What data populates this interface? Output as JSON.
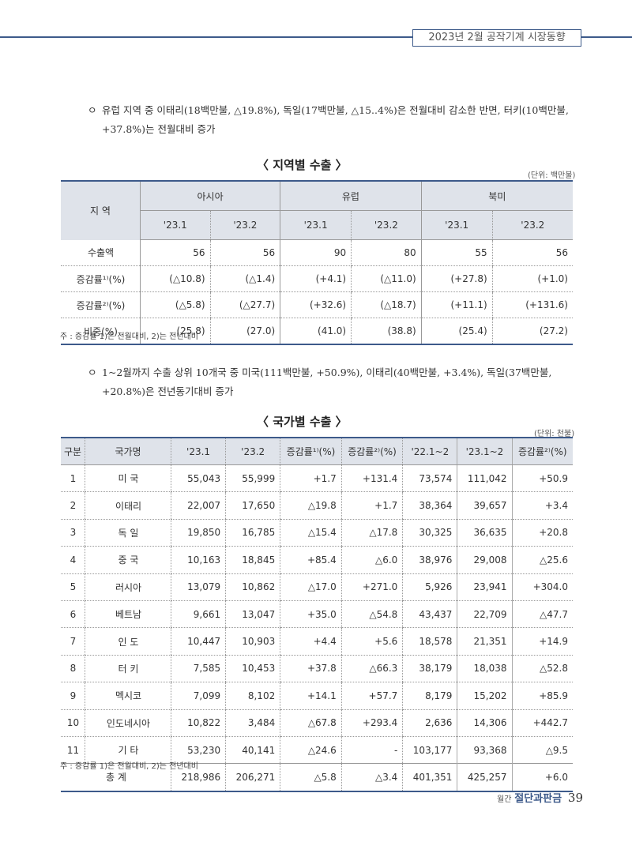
{
  "header": {
    "title": "2023년 2월 공작기계 시장동향"
  },
  "paragraph1": {
    "bullet": "ㅇ",
    "text": "유럽 지역 중 이태리(18백만불, △19.8%), 독일(17백만불, △15..4%)은 전월대비 감소한 반면, 터키(10백만불, +37.8%)는 전월대비 증가"
  },
  "region_table": {
    "title": "〈 지역별 수출 〉",
    "unit": "(단위: 백만불)",
    "region_header": "지 역",
    "groups": [
      "아시아",
      "유럽",
      "북미"
    ],
    "periods": [
      "'23.1",
      "'23.2",
      "'23.1",
      "'23.2",
      "'23.1",
      "'23.2"
    ],
    "rows": [
      {
        "label": "수출액",
        "values": [
          "56",
          "56",
          "90",
          "80",
          "55",
          "56"
        ]
      },
      {
        "label": "증감률¹⁾(%)",
        "values": [
          "(△10.8)",
          "(△1.4)",
          "(+4.1)",
          "(△11.0)",
          "(+27.8)",
          "(+1.0)"
        ]
      },
      {
        "label": "증감률²⁾(%)",
        "values": [
          "(△5.8)",
          "(△27.7)",
          "(+32.6)",
          "(△18.7)",
          "(+11.1)",
          "(+131.6)"
        ]
      },
      {
        "label": "비중(%)",
        "values": [
          "(25.8)",
          "(27.0)",
          "(41.0)",
          "(38.8)",
          "(25.4)",
          "(27.2)"
        ]
      }
    ],
    "note": "주 : 증감률 1)은 전월대비, 2)는 전년대비"
  },
  "paragraph2": {
    "bullet": "ㅇ",
    "text": "1~2월까지 수출 상위 10개국 중 미국(111백만불, +50.9%), 이태리(40백만불, +3.4%), 독일(37백만불, +20.8%)은 전년동기대비 증가"
  },
  "country_table": {
    "title": "〈 국가별 수출 〉",
    "unit": "(단위: 천불)",
    "headers": [
      "구분",
      "국가명",
      "'23.1",
      "'23.2",
      "증감률¹⁾(%)",
      "증감률²⁾(%)",
      "'22.1~2",
      "'23.1~2",
      "증감률²⁾(%)"
    ],
    "rows": [
      [
        "1",
        "미 국",
        "55,043",
        "55,999",
        "+1.7",
        "+131.4",
        "73,574",
        "111,042",
        "+50.9"
      ],
      [
        "2",
        "이태리",
        "22,007",
        "17,650",
        "△19.8",
        "+1.7",
        "38,364",
        "39,657",
        "+3.4"
      ],
      [
        "3",
        "독 일",
        "19,850",
        "16,785",
        "△15.4",
        "△17.8",
        "30,325",
        "36,635",
        "+20.8"
      ],
      [
        "4",
        "중 국",
        "10,163",
        "18,845",
        "+85.4",
        "△6.0",
        "38,976",
        "29,008",
        "△25.6"
      ],
      [
        "5",
        "러시아",
        "13,079",
        "10,862",
        "△17.0",
        "+271.0",
        "5,926",
        "23,941",
        "+304.0"
      ],
      [
        "6",
        "베트남",
        "9,661",
        "13,047",
        "+35.0",
        "△54.8",
        "43,437",
        "22,709",
        "△47.7"
      ],
      [
        "7",
        "인 도",
        "10,447",
        "10,903",
        "+4.4",
        "+5.6",
        "18,578",
        "21,351",
        "+14.9"
      ],
      [
        "8",
        "터 키",
        "7,585",
        "10,453",
        "+37.8",
        "△66.3",
        "38,179",
        "18,038",
        "△52.8"
      ],
      [
        "9",
        "멕시코",
        "7,099",
        "8,102",
        "+14.1",
        "+57.7",
        "8,179",
        "15,202",
        "+85.9"
      ],
      [
        "10",
        "인도네시아",
        "10,822",
        "3,484",
        "△67.8",
        "+293.4",
        "2,636",
        "14,306",
        "+442.7"
      ],
      [
        "11",
        "기 타",
        "53,230",
        "40,141",
        "△24.6",
        "-",
        "103,177",
        "93,368",
        "△9.5"
      ]
    ],
    "total": {
      "label": "총 계",
      "values": [
        "218,986",
        "206,271",
        "△5.8",
        "△3.4",
        "401,351",
        "425,257",
        "+6.0"
      ]
    },
    "note": "주 : 증감률 1)은 전월대비, 2)는 전년대비"
  },
  "footer": {
    "magazine_prefix": "월간",
    "magazine_title": "절단과판금",
    "page_number": "39"
  }
}
